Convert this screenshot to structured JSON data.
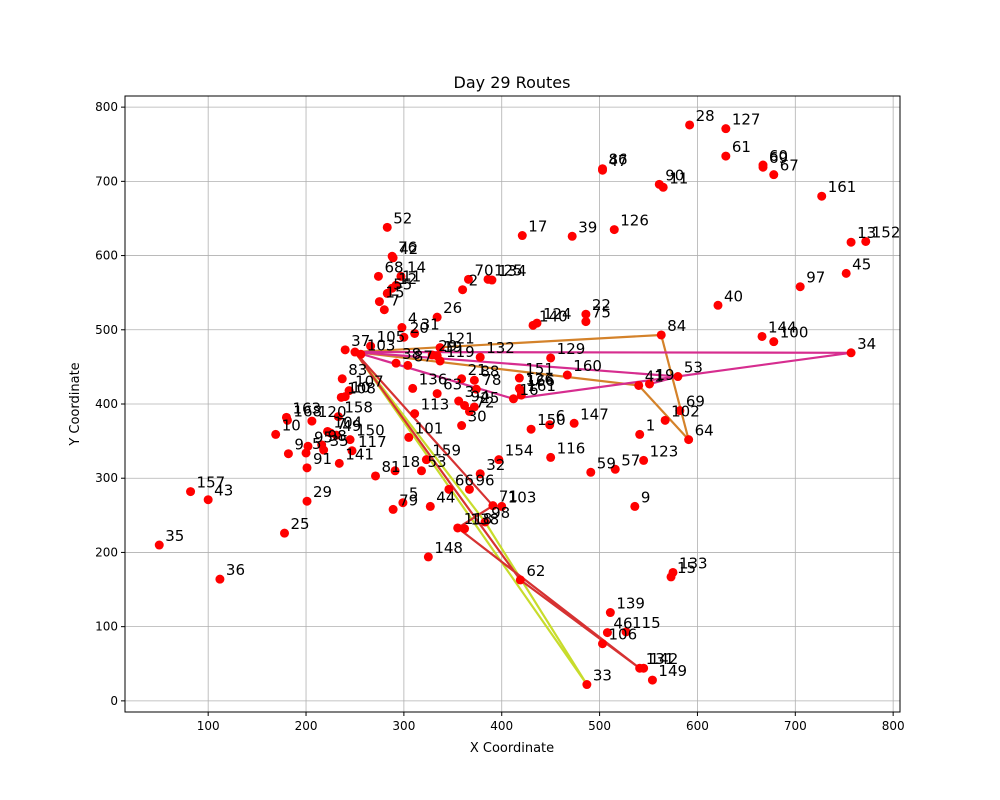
{
  "chart_data": {
    "type": "scatter",
    "title": "Day 29 Routes",
    "xlabel": "X Coordinate",
    "ylabel": "Y Coordinate",
    "xlim": [
      15,
      807
    ],
    "ylim": [
      -15,
      815
    ],
    "xticks": [
      100,
      200,
      300,
      400,
      500,
      600,
      700,
      800
    ],
    "yticks": [
      0,
      100,
      200,
      300,
      400,
      500,
      600,
      700,
      800
    ],
    "grid": true,
    "depot": {
      "label": "37",
      "x": 250,
      "y": 470
    },
    "point_color": "#ff0000",
    "points": [
      {
        "label": "28",
        "x": 592,
        "y": 776
      },
      {
        "label": "127",
        "x": 629,
        "y": 771
      },
      {
        "label": "61",
        "x": 629,
        "y": 734
      },
      {
        "label": "60",
        "x": 667,
        "y": 722
      },
      {
        "label": "69",
        "x": 667,
        "y": 719
      },
      {
        "label": "67",
        "x": 678,
        "y": 709
      },
      {
        "label": "86",
        "x": 503,
        "y": 717
      },
      {
        "label": "47",
        "x": 503,
        "y": 715
      },
      {
        "label": "90",
        "x": 561,
        "y": 696
      },
      {
        "label": "11",
        "x": 565,
        "y": 692
      },
      {
        "label": "161",
        "x": 727,
        "y": 680
      },
      {
        "label": "13",
        "x": 757,
        "y": 618
      },
      {
        "label": "152",
        "x": 772,
        "y": 619
      },
      {
        "label": "52",
        "x": 283,
        "y": 638
      },
      {
        "label": "17",
        "x": 421,
        "y": 627
      },
      {
        "label": "39",
        "x": 472,
        "y": 626
      },
      {
        "label": "126",
        "x": 515,
        "y": 635
      },
      {
        "label": "76",
        "x": 288,
        "y": 599
      },
      {
        "label": "42",
        "x": 289,
        "y": 597
      },
      {
        "label": "45",
        "x": 752,
        "y": 576
      },
      {
        "label": "97",
        "x": 705,
        "y": 558
      },
      {
        "label": "68",
        "x": 274,
        "y": 572
      },
      {
        "label": "14",
        "x": 297,
        "y": 572
      },
      {
        "label": "11",
        "x": 292,
        "y": 560
      },
      {
        "label": "12",
        "x": 288,
        "y": 556
      },
      {
        "label": "70",
        "x": 366,
        "y": 568
      },
      {
        "label": "125",
        "x": 386,
        "y": 568
      },
      {
        "label": "134",
        "x": 390,
        "y": 567
      },
      {
        "label": "2",
        "x": 360,
        "y": 554
      },
      {
        "label": "55",
        "x": 283,
        "y": 549
      },
      {
        "label": "15",
        "x": 275,
        "y": 538
      },
      {
        "label": "7",
        "x": 280,
        "y": 527
      },
      {
        "label": "40",
        "x": 621,
        "y": 533
      },
      {
        "label": "22",
        "x": 486,
        "y": 521
      },
      {
        "label": "75",
        "x": 486,
        "y": 511
      },
      {
        "label": "124",
        "x": 436,
        "y": 509
      },
      {
        "label": "140",
        "x": 432,
        "y": 506
      },
      {
        "label": "26",
        "x": 334,
        "y": 517
      },
      {
        "label": "4",
        "x": 298,
        "y": 503
      },
      {
        "label": "31",
        "x": 311,
        "y": 495
      },
      {
        "label": "20",
        "x": 300,
        "y": 490
      },
      {
        "label": "84",
        "x": 563,
        "y": 493
      },
      {
        "label": "144",
        "x": 666,
        "y": 491
      },
      {
        "label": "100",
        "x": 678,
        "y": 484
      },
      {
        "label": "34",
        "x": 757,
        "y": 469
      },
      {
        "label": "105",
        "x": 266,
        "y": 478
      },
      {
        "label": "121",
        "x": 337,
        "y": 476
      },
      {
        "label": "37",
        "x": 240,
        "y": 473
      },
      {
        "label": "103",
        "x": 256,
        "y": 467
      },
      {
        "label": "29",
        "x": 329,
        "y": 466
      },
      {
        "label": "19",
        "x": 334,
        "y": 465
      },
      {
        "label": "132",
        "x": 378,
        "y": 463
      },
      {
        "label": "129",
        "x": 450,
        "y": 462
      },
      {
        "label": "119",
        "x": 337,
        "y": 458
      },
      {
        "label": "38",
        "x": 292,
        "y": 455
      },
      {
        "label": "87",
        "x": 304,
        "y": 452
      },
      {
        "label": "160",
        "x": 467,
        "y": 439
      },
      {
        "label": "53",
        "x": 580,
        "y": 437
      },
      {
        "label": "83",
        "x": 237,
        "y": 434
      },
      {
        "label": "151",
        "x": 418,
        "y": 435
      },
      {
        "label": "21",
        "x": 359,
        "y": 434
      },
      {
        "label": "88",
        "x": 372,
        "y": 432
      },
      {
        "label": "41",
        "x": 540,
        "y": 425
      },
      {
        "label": "19",
        "x": 551,
        "y": 427
      },
      {
        "label": "136",
        "x": 309,
        "y": 421
      },
      {
        "label": "78",
        "x": 374,
        "y": 420
      },
      {
        "label": "126",
        "x": 418,
        "y": 421
      },
      {
        "label": "166",
        "x": 419,
        "y": 419
      },
      {
        "label": "107",
        "x": 244,
        "y": 418
      },
      {
        "label": "63",
        "x": 334,
        "y": 414
      },
      {
        "label": "161",
        "x": 420,
        "y": 412
      },
      {
        "label": "16",
        "x": 412,
        "y": 407
      },
      {
        "label": "10",
        "x": 240,
        "y": 410
      },
      {
        "label": "108",
        "x": 236,
        "y": 409
      },
      {
        "label": "3",
        "x": 356,
        "y": 404
      },
      {
        "label": "94",
        "x": 362,
        "y": 398
      },
      {
        "label": "72",
        "x": 367,
        "y": 390
      },
      {
        "label": "25",
        "x": 372,
        "y": 396
      },
      {
        "label": "69",
        "x": 582,
        "y": 391
      },
      {
        "label": "102",
        "x": 567,
        "y": 378
      },
      {
        "label": "113",
        "x": 311,
        "y": 387
      },
      {
        "label": "30",
        "x": 359,
        "y": 371
      },
      {
        "label": "163",
        "x": 180,
        "y": 382
      },
      {
        "label": "168",
        "x": 181,
        "y": 378
      },
      {
        "label": "120",
        "x": 206,
        "y": 377
      },
      {
        "label": "158",
        "x": 233,
        "y": 383
      },
      {
        "label": "6",
        "x": 449,
        "y": 372
      },
      {
        "label": "147",
        "x": 474,
        "y": 374
      },
      {
        "label": "150",
        "x": 430,
        "y": 366
      },
      {
        "label": "1",
        "x": 541,
        "y": 359
      },
      {
        "label": "64",
        "x": 591,
        "y": 352
      },
      {
        "label": "10",
        "x": 169,
        "y": 359
      },
      {
        "label": "104",
        "x": 222,
        "y": 363
      },
      {
        "label": "7",
        "x": 225,
        "y": 361
      },
      {
        "label": "49",
        "x": 231,
        "y": 358
      },
      {
        "label": "150",
        "x": 245,
        "y": 352
      },
      {
        "label": "101",
        "x": 305,
        "y": 355
      },
      {
        "label": "95",
        "x": 202,
        "y": 343
      },
      {
        "label": "98",
        "x": 216,
        "y": 345
      },
      {
        "label": "35",
        "x": 218,
        "y": 338
      },
      {
        "label": "117",
        "x": 247,
        "y": 337
      },
      {
        "label": "9",
        "x": 182,
        "y": 333
      },
      {
        "label": "5",
        "x": 200,
        "y": 334
      },
      {
        "label": "159",
        "x": 323,
        "y": 325
      },
      {
        "label": "154",
        "x": 397,
        "y": 325
      },
      {
        "label": "116",
        "x": 450,
        "y": 328
      },
      {
        "label": "123",
        "x": 545,
        "y": 324
      },
      {
        "label": "141",
        "x": 234,
        "y": 320
      },
      {
        "label": "91",
        "x": 201,
        "y": 314
      },
      {
        "label": "81",
        "x": 271,
        "y": 303
      },
      {
        "label": "18",
        "x": 291,
        "y": 310
      },
      {
        "label": "53",
        "x": 318,
        "y": 310
      },
      {
        "label": "32",
        "x": 378,
        "y": 306
      },
      {
        "label": "59",
        "x": 491,
        "y": 308
      },
      {
        "label": "57",
        "x": 516,
        "y": 312
      },
      {
        "label": "157",
        "x": 82,
        "y": 282
      },
      {
        "label": "43",
        "x": 100,
        "y": 271
      },
      {
        "label": "29",
        "x": 201,
        "y": 269
      },
      {
        "label": "66",
        "x": 346,
        "y": 285
      },
      {
        "label": "96",
        "x": 367,
        "y": 285
      },
      {
        "label": "103",
        "x": 400,
        "y": 262
      },
      {
        "label": "71",
        "x": 391,
        "y": 263
      },
      {
        "label": "79",
        "x": 289,
        "y": 258
      },
      {
        "label": "5",
        "x": 299,
        "y": 267
      },
      {
        "label": "44",
        "x": 327,
        "y": 262
      },
      {
        "label": "9",
        "x": 536,
        "y": 262
      },
      {
        "label": "98",
        "x": 383,
        "y": 241
      },
      {
        "label": "118",
        "x": 355,
        "y": 233
      },
      {
        "label": "138",
        "x": 362,
        "y": 232
      },
      {
        "label": "25",
        "x": 178,
        "y": 226
      },
      {
        "label": "148",
        "x": 325,
        "y": 194
      },
      {
        "label": "35",
        "x": 50,
        "y": 210
      },
      {
        "label": "133",
        "x": 575,
        "y": 173
      },
      {
        "label": "15",
        "x": 573,
        "y": 167
      },
      {
        "label": "36",
        "x": 112,
        "y": 164
      },
      {
        "label": "62",
        "x": 419,
        "y": 163
      },
      {
        "label": "139",
        "x": 511,
        "y": 119
      },
      {
        "label": "46",
        "x": 508,
        "y": 92
      },
      {
        "label": "115",
        "x": 527,
        "y": 93
      },
      {
        "label": "106",
        "x": 503,
        "y": 77
      },
      {
        "label": "131",
        "x": 541,
        "y": 44
      },
      {
        "label": "142",
        "x": 545,
        "y": 44
      },
      {
        "label": "149",
        "x": 554,
        "y": 28
      },
      {
        "label": "33",
        "x": 487,
        "y": 22
      }
    ],
    "routes": [
      {
        "color": "#d4822a",
        "path": [
          [
            250,
            470
          ],
          [
            563,
            493
          ],
          [
            591,
            352
          ],
          [
            540,
            425
          ],
          [
            250,
            470
          ]
        ]
      },
      {
        "color": "#d62d8f",
        "path": [
          [
            250,
            470
          ],
          [
            757,
            469
          ],
          [
            412,
            407
          ],
          [
            250,
            470
          ]
        ]
      },
      {
        "color": "#d62d8f",
        "path": [
          [
            250,
            470
          ],
          [
            580,
            437
          ],
          [
            551,
            427
          ]
        ]
      },
      {
        "color": "#c8dc2c",
        "path": [
          [
            250,
            470
          ],
          [
            487,
            22
          ],
          [
            250,
            470
          ]
        ]
      },
      {
        "color": "#c8dc2c",
        "path": [
          [
            250,
            470
          ],
          [
            383,
            241
          ],
          [
            487,
            22
          ]
        ]
      },
      {
        "color": "#d63232",
        "path": [
          [
            250,
            470
          ],
          [
            391,
            263
          ],
          [
            355,
            233
          ],
          [
            541,
            44
          ],
          [
            419,
            163
          ],
          [
            250,
            470
          ]
        ]
      }
    ]
  }
}
